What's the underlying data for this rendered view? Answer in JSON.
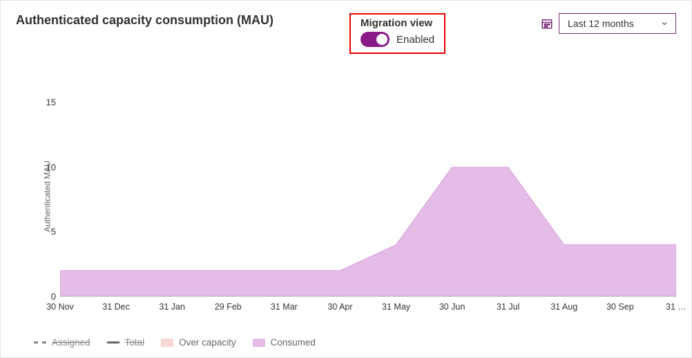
{
  "header": {
    "title": "Authenticated capacity consumption (MAU)",
    "migration": {
      "label": "Migration view",
      "state_label": "Enabled",
      "enabled": true,
      "highlight_border_color": "#e60000",
      "toggle_on_color": "#8a1a8a"
    },
    "period_selector": {
      "value": "Last 12 months",
      "border_color": "#742774",
      "icon_color": "#742774"
    }
  },
  "chart": {
    "type": "area",
    "ylabel": "Authenticated MAU",
    "ylim": [
      0,
      17
    ],
    "yticks": [
      0,
      5,
      10,
      15
    ],
    "x_categories": [
      "30 Nov",
      "31 Dec",
      "31 Jan",
      "29 Feb",
      "31 Mar",
      "30 Apr",
      "31 May",
      "30 Jun",
      "31 Jul",
      "31 Aug",
      "30 Sep",
      "31 …"
    ],
    "series": {
      "consumed": {
        "values": [
          2,
          2,
          2,
          2,
          2,
          2,
          4,
          10,
          10,
          4,
          4,
          4
        ],
        "fill_color": "#e5bce8",
        "line_color": "#d39ad8"
      }
    },
    "axis_color": "#777",
    "background_color": "#ffffff",
    "tick_fontsize": 13
  },
  "legend": {
    "items": [
      {
        "key": "assigned",
        "label": "Assigned",
        "style": "dash",
        "color": "#888",
        "strike": true
      },
      {
        "key": "total",
        "label": "Total",
        "style": "line",
        "color": "#666",
        "strike": true
      },
      {
        "key": "over",
        "label": "Over capacity",
        "style": "area",
        "color": "#f7d6d6",
        "strike": false
      },
      {
        "key": "consumed",
        "label": "Consumed",
        "style": "area",
        "color": "#e5bce8",
        "strike": false
      }
    ]
  }
}
